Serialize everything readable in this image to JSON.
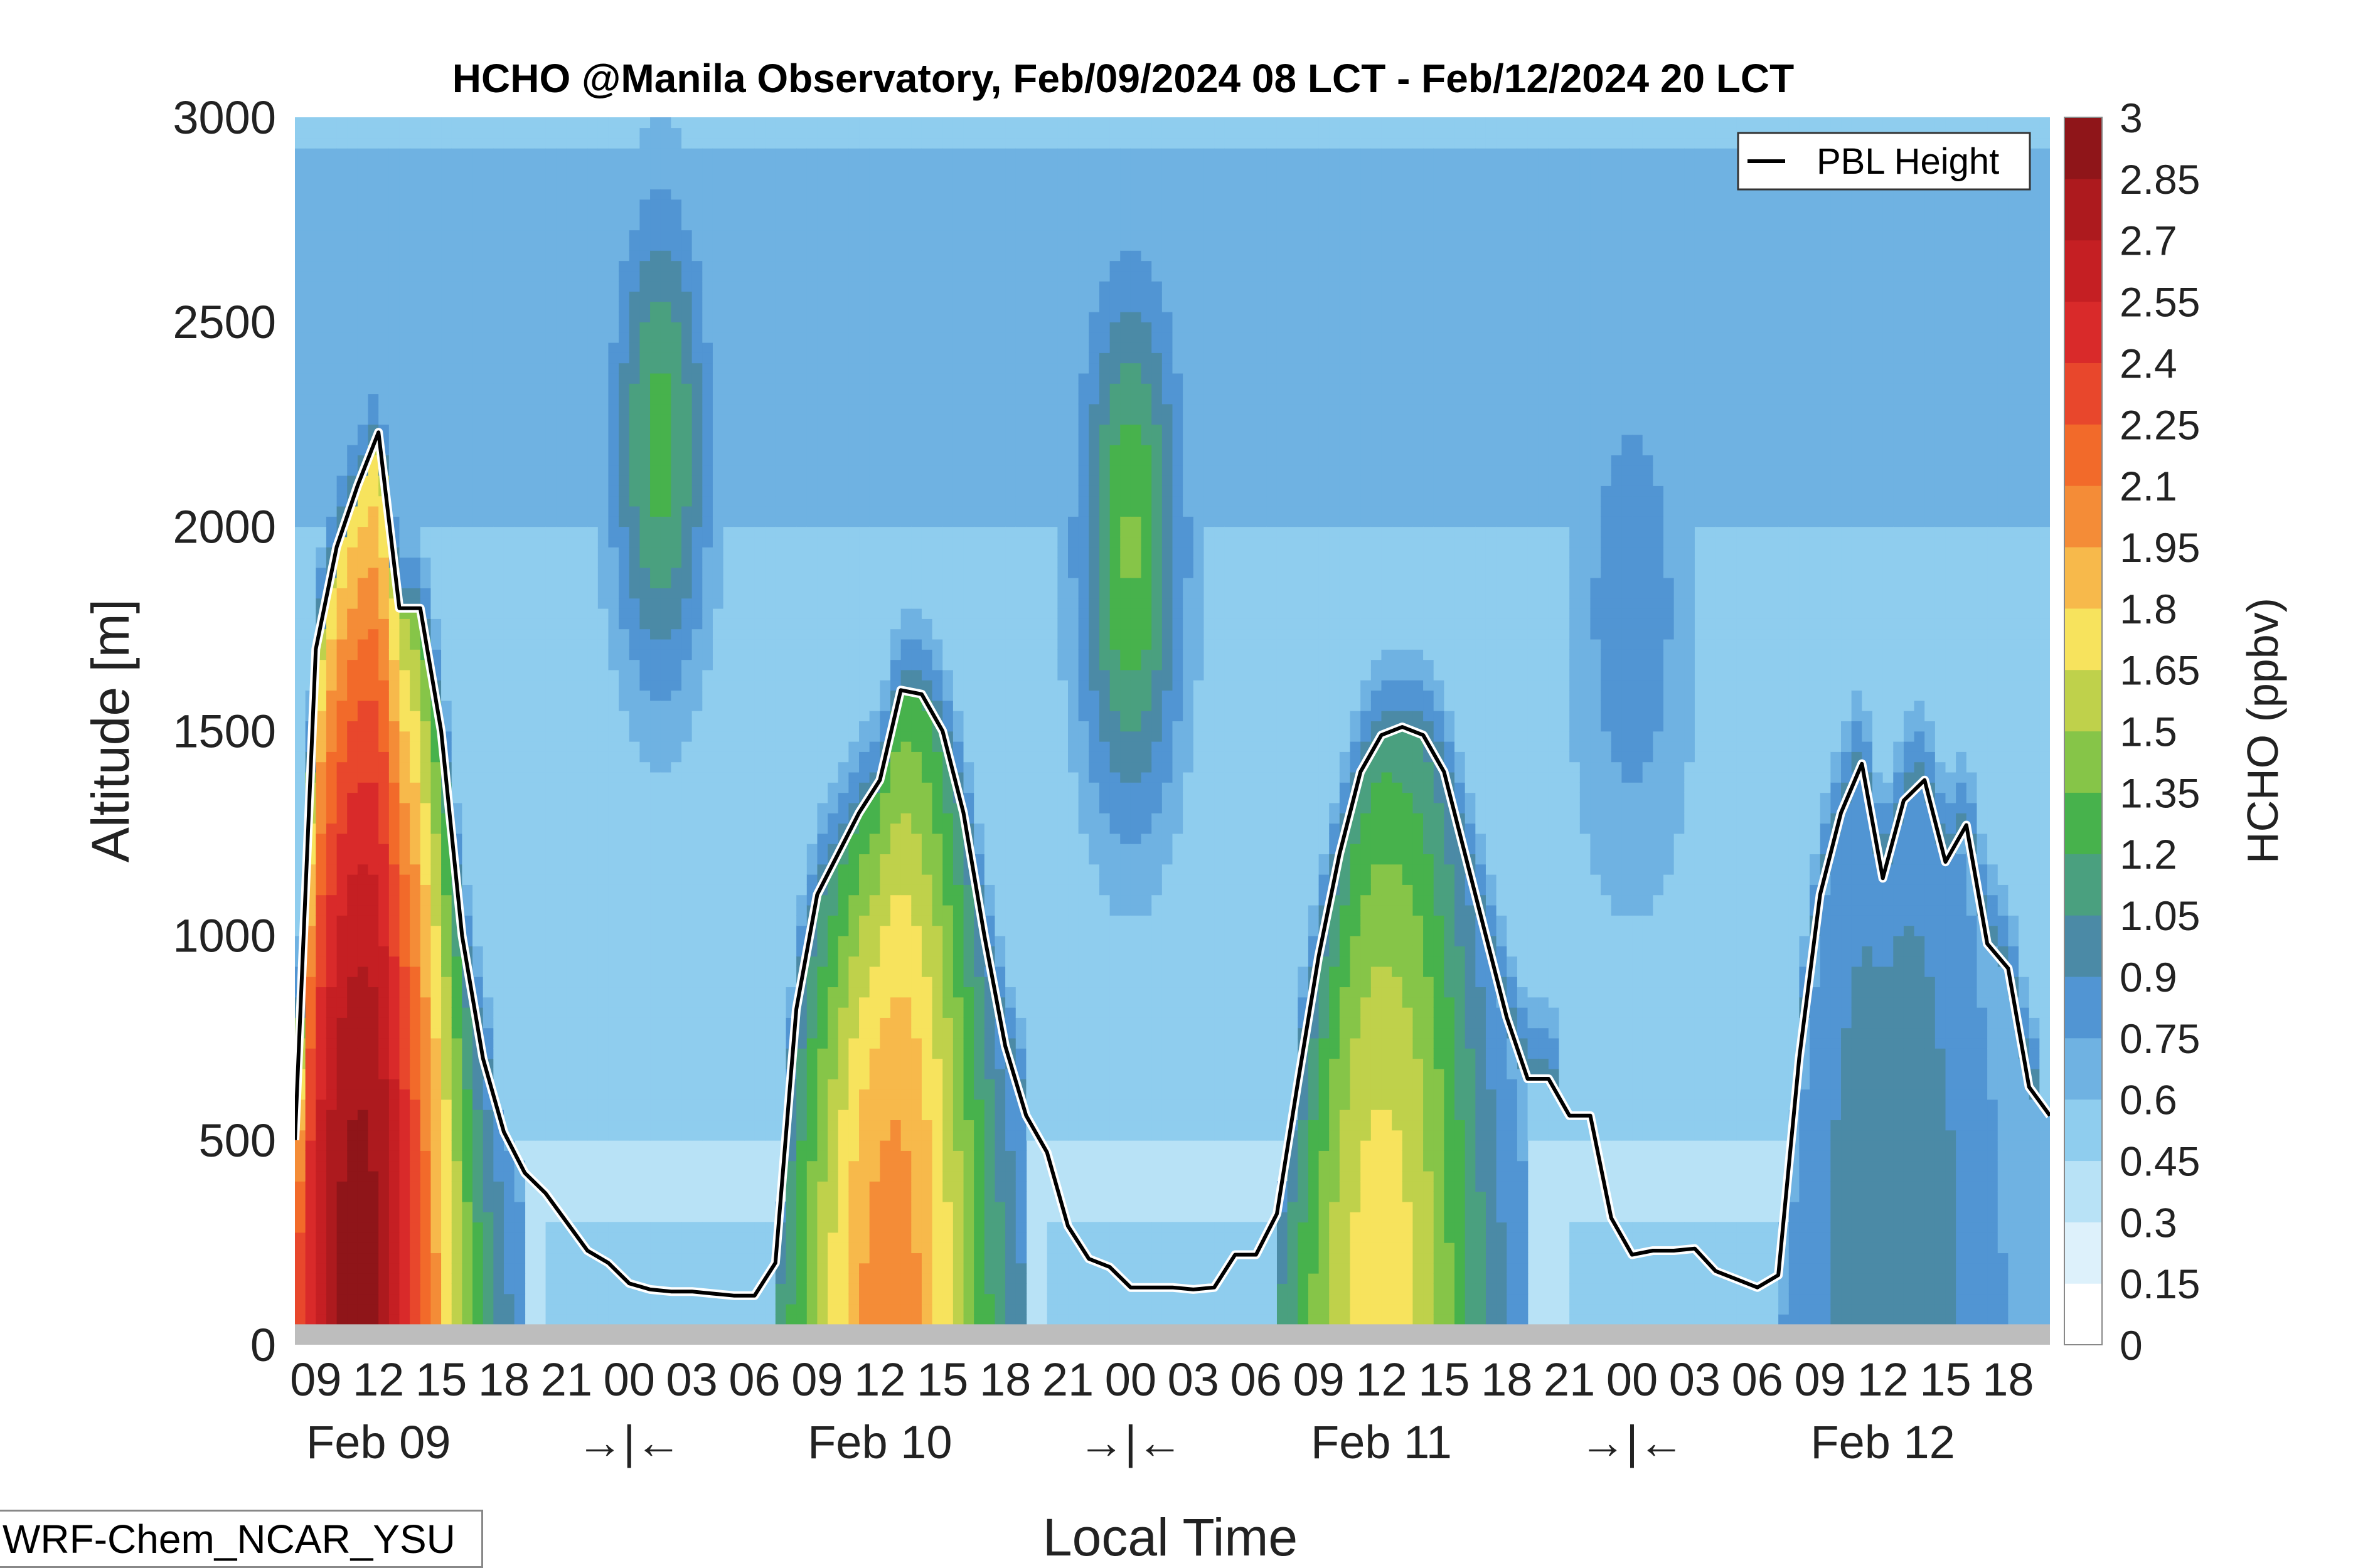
{
  "chart_data": {
    "type": "heatmap",
    "title": "HCHO @Manila Observatory, Feb/09/2024 08 LCT - Feb/12/2024 20 LCT",
    "xlabel": "Local Time",
    "ylabel": "Altitude [m]",
    "colorbar_label": "HCHO (ppbv)",
    "x_hours_range": [
      8,
      92
    ],
    "ylim": [
      0,
      3000
    ],
    "y_ticks": [
      "0",
      "500",
      "1000",
      "1500",
      "2000",
      "2500",
      "3000"
    ],
    "x_hour_ticks": [
      {
        "hour": 9,
        "label": "09"
      },
      {
        "hour": 12,
        "label": "12"
      },
      {
        "hour": 15,
        "label": "15"
      },
      {
        "hour": 18,
        "label": "18"
      },
      {
        "hour": 21,
        "label": "21"
      },
      {
        "hour": 24,
        "label": "00"
      },
      {
        "hour": 27,
        "label": "03"
      },
      {
        "hour": 30,
        "label": "06"
      },
      {
        "hour": 33,
        "label": "09"
      },
      {
        "hour": 36,
        "label": "12"
      },
      {
        "hour": 39,
        "label": "15"
      },
      {
        "hour": 42,
        "label": "18"
      },
      {
        "hour": 45,
        "label": "21"
      },
      {
        "hour": 48,
        "label": "00"
      },
      {
        "hour": 51,
        "label": "03"
      },
      {
        "hour": 54,
        "label": "06"
      },
      {
        "hour": 57,
        "label": "09"
      },
      {
        "hour": 60,
        "label": "12"
      },
      {
        "hour": 63,
        "label": "15"
      },
      {
        "hour": 66,
        "label": "18"
      },
      {
        "hour": 69,
        "label": "21"
      },
      {
        "hour": 72,
        "label": "00"
      },
      {
        "hour": 75,
        "label": "03"
      },
      {
        "hour": 78,
        "label": "06"
      },
      {
        "hour": 81,
        "label": "09"
      },
      {
        "hour": 84,
        "label": "12"
      },
      {
        "hour": 87,
        "label": "15"
      },
      {
        "hour": 90,
        "label": "18"
      }
    ],
    "day_labels": [
      {
        "hour": 12,
        "label": "Feb 09"
      },
      {
        "hour": 24,
        "label": "→|←"
      },
      {
        "hour": 36,
        "label": "Feb 10"
      },
      {
        "hour": 48,
        "label": "→|←"
      },
      {
        "hour": 60,
        "label": "Feb 11"
      },
      {
        "hour": 72,
        "label": "→|←"
      },
      {
        "hour": 84,
        "label": "Feb 12"
      }
    ],
    "colorbar_levels": [
      0,
      0.15,
      0.3,
      0.45,
      0.6,
      0.75,
      0.9,
      1.05,
      1.2,
      1.35,
      1.5,
      1.65,
      1.8,
      1.95,
      2.1,
      2.25,
      2.4,
      2.55,
      2.7,
      2.85,
      3
    ],
    "colorbar_tick_labels": [
      "0",
      "0.15",
      "0.3",
      "0.45",
      "0.6",
      "0.75",
      "0.9",
      "1.05",
      "1.2",
      "1.35",
      "1.5",
      "1.65",
      "1.8",
      "1.95",
      "2.1",
      "2.25",
      "2.4",
      "2.55",
      "2.7",
      "2.85",
      "3"
    ],
    "colormap": [
      "#ffffff",
      "#ddf1fb",
      "#b8e2f6",
      "#8fcdee",
      "#6fb2e2",
      "#5195d3",
      "#4b8aa6",
      "#4aa07f",
      "#47b24c",
      "#86c548",
      "#bfd14b",
      "#f7e35d",
      "#f7b94b",
      "#f48c37",
      "#f26a2a",
      "#e8472c",
      "#d92a2a",
      "#c51f23",
      "#ad1a1e",
      "#8f1519"
    ],
    "ground_color": "#bdbdbd",
    "ground_height_m": 50,
    "pbl_series": {
      "name": "PBL Height",
      "color": "#000000",
      "points": [
        [
          8,
          500
        ],
        [
          9,
          1700
        ],
        [
          10,
          1950
        ],
        [
          11,
          2100
        ],
        [
          12,
          2230
        ],
        [
          13,
          1800
        ],
        [
          14,
          1800
        ],
        [
          15,
          1500
        ],
        [
          16,
          1000
        ],
        [
          17,
          700
        ],
        [
          18,
          520
        ],
        [
          19,
          420
        ],
        [
          20,
          370
        ],
        [
          21,
          300
        ],
        [
          22,
          230
        ],
        [
          23,
          200
        ],
        [
          24,
          150
        ],
        [
          25,
          135
        ],
        [
          26,
          130
        ],
        [
          27,
          130
        ],
        [
          28,
          125
        ],
        [
          29,
          120
        ],
        [
          30,
          120
        ],
        [
          31,
          200
        ],
        [
          32,
          820
        ],
        [
          33,
          1100
        ],
        [
          34,
          1200
        ],
        [
          35,
          1300
        ],
        [
          36,
          1380
        ],
        [
          37,
          1600
        ],
        [
          38,
          1590
        ],
        [
          39,
          1500
        ],
        [
          40,
          1300
        ],
        [
          41,
          1000
        ],
        [
          42,
          730
        ],
        [
          43,
          560
        ],
        [
          44,
          470
        ],
        [
          45,
          290
        ],
        [
          46,
          210
        ],
        [
          47,
          190
        ],
        [
          48,
          140
        ],
        [
          49,
          140
        ],
        [
          50,
          140
        ],
        [
          51,
          135
        ],
        [
          52,
          140
        ],
        [
          53,
          220
        ],
        [
          54,
          220
        ],
        [
          55,
          320
        ],
        [
          56,
          640
        ],
        [
          57,
          950
        ],
        [
          58,
          1200
        ],
        [
          59,
          1400
        ],
        [
          60,
          1490
        ],
        [
          61,
          1510
        ],
        [
          62,
          1490
        ],
        [
          63,
          1400
        ],
        [
          64,
          1200
        ],
        [
          65,
          1000
        ],
        [
          66,
          800
        ],
        [
          67,
          650
        ],
        [
          68,
          650
        ],
        [
          69,
          560
        ],
        [
          70,
          560
        ],
        [
          71,
          310
        ],
        [
          72,
          220
        ],
        [
          73,
          230
        ],
        [
          74,
          230
        ],
        [
          75,
          235
        ],
        [
          76,
          180
        ],
        [
          77,
          160
        ],
        [
          78,
          140
        ],
        [
          79,
          170
        ],
        [
          80,
          700
        ],
        [
          81,
          1100
        ],
        [
          82,
          1300
        ],
        [
          83,
          1420
        ],
        [
          84,
          1140
        ],
        [
          85,
          1330
        ],
        [
          86,
          1380
        ],
        [
          87,
          1180
        ],
        [
          88,
          1270
        ],
        [
          89,
          980
        ],
        [
          90,
          920
        ],
        [
          91,
          630
        ],
        [
          92,
          560
        ]
      ]
    }
  },
  "model_label": "WRF-Chem_NCAR_YSU"
}
